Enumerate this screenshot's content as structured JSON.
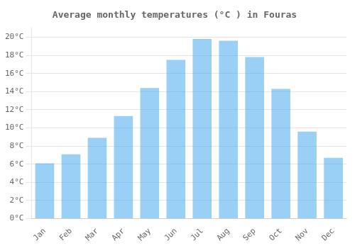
{
  "chart_data": {
    "type": "bar",
    "title": "Average monthly temperatures (°C ) in Fouras",
    "categories": [
      "Jan",
      "Feb",
      "Mar",
      "Apr",
      "May",
      "Jun",
      "Jul",
      "Aug",
      "Sep",
      "Oct",
      "Nov",
      "Dec"
    ],
    "values": [
      6.1,
      7.1,
      8.9,
      11.3,
      14.4,
      17.5,
      19.8,
      19.6,
      17.8,
      14.3,
      9.6,
      6.7
    ],
    "ylim": [
      0,
      21
    ],
    "yticks": [
      {
        "value": 0,
        "label": "0°C"
      },
      {
        "value": 2,
        "label": "2°C"
      },
      {
        "value": 4,
        "label": "4°C"
      },
      {
        "value": 6,
        "label": "6°C"
      },
      {
        "value": 8,
        "label": "8°C"
      },
      {
        "value": 10,
        "label": "10°C"
      },
      {
        "value": 12,
        "label": "12°C"
      },
      {
        "value": 14,
        "label": "14°C"
      },
      {
        "value": 16,
        "label": "16°C"
      },
      {
        "value": 18,
        "label": "18°C"
      },
      {
        "value": 20,
        "label": "20°C"
      }
    ],
    "grid": true
  }
}
